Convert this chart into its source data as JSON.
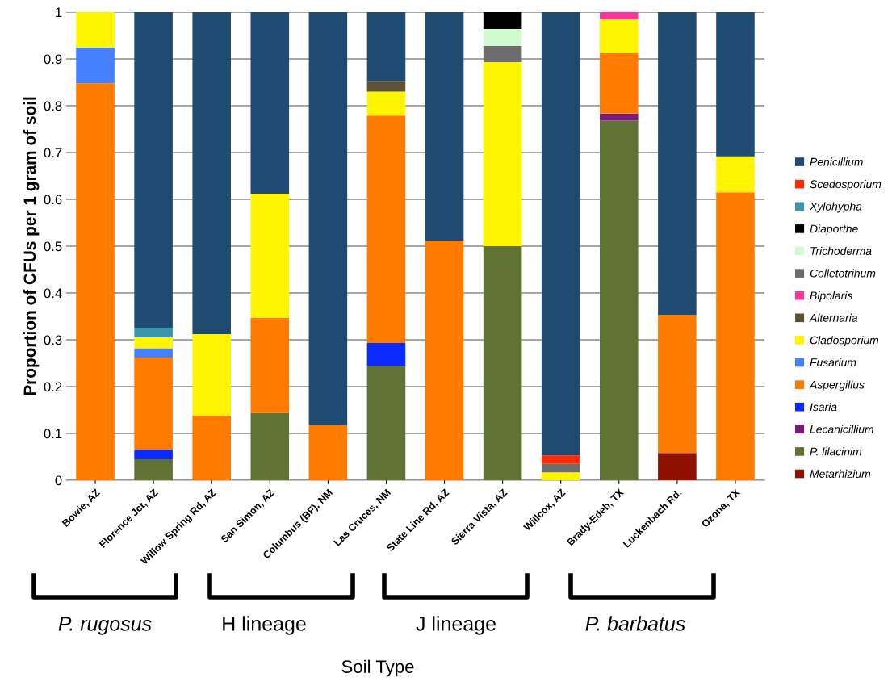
{
  "chart_data": {
    "type": "bar",
    "stacked": true,
    "ylabel": "Proportion of CFUs per 1 gram of soil",
    "categories": [
      "Bowie, AZ",
      "Florence Jct, AZ",
      "Willow Spring Rd, AZ",
      "San Simon, AZ",
      "Columbus (BF), NM",
      "Las Cruces, NM",
      "State Line Rd, AZ",
      "Sierra Vista, AZ",
      "Willcox, AZ",
      "Brady-Edeb, TX",
      "Luckenbach Rd.",
      "Ozona, TX"
    ],
    "series": [
      {
        "name": "Metarhizium",
        "color": "#901100",
        "values": [
          0,
          0,
          0,
          0,
          0,
          0,
          0,
          0,
          0,
          0,
          0.058,
          0
        ]
      },
      {
        "name": "P. lilacinim",
        "color": "#607334",
        "values": [
          0,
          0.045,
          0,
          0.144,
          0,
          0.244,
          0,
          0.5,
          0,
          0.768,
          0,
          0
        ]
      },
      {
        "name": "Lecanicillium",
        "color": "#7a1a7a",
        "values": [
          0,
          0,
          0,
          0,
          0,
          0,
          0,
          0,
          0,
          0.015,
          0,
          0
        ]
      },
      {
        "name": "Isaria",
        "color": "#0a2aff",
        "values": [
          0,
          0.02,
          0,
          0,
          0,
          0.049,
          0,
          0,
          0,
          0,
          0,
          0
        ]
      },
      {
        "name": "Aspergillus",
        "color": "#ff7b00",
        "values": [
          0.848,
          0.197,
          0.138,
          0.203,
          0.118,
          0.486,
          0.512,
          0,
          0,
          0.129,
          0.295,
          0.615
        ]
      },
      {
        "name": "Fusarium",
        "color": "#4580ff",
        "values": [
          0.076,
          0.02,
          0,
          0,
          0,
          0,
          0,
          0,
          0,
          0,
          0,
          0
        ]
      },
      {
        "name": "Cladosporium",
        "color": "#fff500",
        "values": [
          0.076,
          0.023,
          0.174,
          0.265,
          0,
          0.051,
          0,
          0.393,
          0.017,
          0.073,
          0,
          0.077
        ]
      },
      {
        "name": "Alternaria",
        "color": "#5c5238",
        "values": [
          0,
          0,
          0,
          0,
          0,
          0.023,
          0,
          0,
          0,
          0,
          0,
          0
        ]
      },
      {
        "name": "Bipolaris",
        "color": "#ff3399",
        "values": [
          0,
          0,
          0,
          0,
          0,
          0,
          0,
          0,
          0,
          0.015,
          0,
          0
        ]
      },
      {
        "name": "Colletotrihum",
        "color": "#6d6d6d",
        "values": [
          0,
          0,
          0,
          0,
          0,
          0,
          0,
          0.035,
          0.018,
          0,
          0,
          0
        ]
      },
      {
        "name": "Trichoderma",
        "color": "#d2fad2",
        "values": [
          0,
          0,
          0,
          0,
          0,
          0,
          0,
          0.036,
          0,
          0,
          0,
          0
        ]
      },
      {
        "name": "Diaporthe",
        "color": "#000000",
        "values": [
          0,
          0,
          0,
          0,
          0,
          0,
          0,
          0.036,
          0,
          0,
          0,
          0
        ]
      },
      {
        "name": "Xylohypha",
        "color": "#3a96aa",
        "values": [
          0,
          0.021,
          0,
          0,
          0,
          0,
          0,
          0,
          0,
          0,
          0,
          0
        ]
      },
      {
        "name": "Scedosporium",
        "color": "#ff2a00",
        "values": [
          0,
          0,
          0,
          0,
          0,
          0,
          0,
          0,
          0.018,
          0,
          0,
          0
        ]
      },
      {
        "name": "Penicillium",
        "color": "#1f4a72",
        "values": [
          0,
          0.674,
          0.688,
          0.388,
          0.882,
          0.147,
          0.488,
          0,
          0.947,
          0,
          0.647,
          0.308
        ]
      }
    ],
    "ylim": [
      0,
      1
    ],
    "yticks": [
      0,
      0.1,
      0.2,
      0.3,
      0.4,
      0.5,
      0.6,
      0.7,
      0.8,
      0.9,
      1
    ],
    "grid": "y",
    "legend": "right",
    "annotations": [
      "P. rugosus",
      "H lineage",
      "J lineage",
      "P. barbatus",
      "Soil Type"
    ]
  }
}
